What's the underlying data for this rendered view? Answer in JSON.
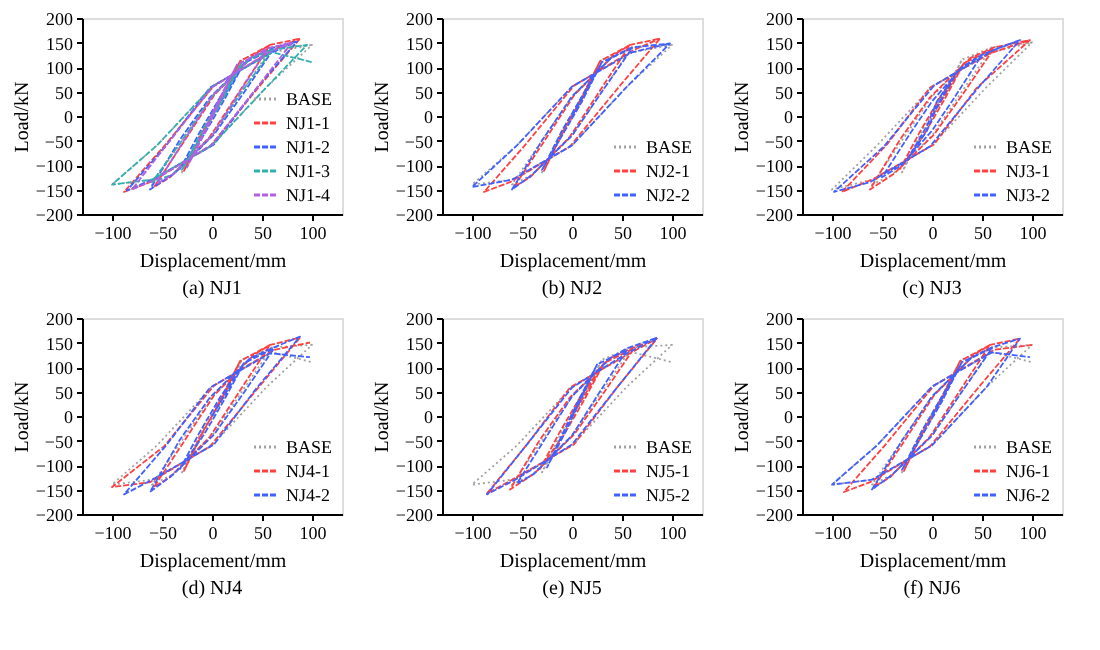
{
  "chart_data": [
    {
      "type": "line",
      "title": "(a) NJ1",
      "xlabel": "Displacement/mm",
      "ylabel": "Load/kN",
      "xlim": [
        -130,
        130
      ],
      "xticks": [
        -100,
        -50,
        0,
        50,
        100
      ],
      "ylim": [
        -200,
        200
      ],
      "yticks": [
        -200,
        -150,
        -100,
        -50,
        0,
        50,
        100,
        150,
        200
      ],
      "legend": "bottom right",
      "series": [
        {
          "name": "BASE",
          "color": "#a0a0a0",
          "line_style": "dotted",
          "x": [
            0,
            30,
            10,
            -10,
            -30,
            -10,
            10,
            30,
            60,
            30,
            0,
            -40,
            -60,
            -30,
            0,
            40,
            60,
            100,
            55,
            0,
            -60,
            -100,
            -55,
            0,
            60,
            100
          ],
          "values": [
            0,
            115,
            30,
            -40,
            -115,
            -30,
            40,
            115,
            140,
            50,
            -40,
            -120,
            -140,
            -50,
            40,
            120,
            140,
            145,
            60,
            -60,
            -130,
            -140,
            -60,
            60,
            130,
            145
          ]
        },
        {
          "name": "NJ1-1",
          "color": "#ff4040",
          "line_style": "dashed",
          "x": [
            0,
            28,
            8,
            -12,
            -28,
            -8,
            12,
            28,
            58,
            28,
            -2,
            -42,
            -58,
            -28,
            2,
            42,
            58,
            88,
            48,
            -2,
            -62,
            -88,
            -48,
            2,
            62,
            88
          ],
          "values": [
            0,
            112,
            28,
            -42,
            -112,
            -28,
            42,
            112,
            145,
            52,
            -42,
            -125,
            -145,
            -52,
            42,
            125,
            145,
            158,
            62,
            -62,
            -135,
            -155,
            -62,
            62,
            135,
            158
          ]
        },
        {
          "name": "NJ1-2",
          "color": "#4060ff",
          "line_style": "dashed",
          "x": [
            0,
            32,
            12,
            -8,
            -32,
            -12,
            8,
            32,
            62,
            32,
            2,
            -38,
            -62,
            -32,
            -2,
            38,
            62,
            85,
            45,
            2,
            -58,
            -85,
            -45,
            -2,
            58,
            85
          ],
          "values": [
            0,
            108,
            32,
            -38,
            -108,
            -32,
            38,
            108,
            138,
            48,
            -38,
            -118,
            -150,
            -48,
            38,
            118,
            140,
            152,
            58,
            -58,
            -128,
            -152,
            -58,
            58,
            128,
            152
          ]
        },
        {
          "name": "NJ1-3",
          "color": "#30b0b0",
          "line_style": "dashed",
          "x": [
            0,
            30,
            10,
            -10,
            -30,
            -10,
            10,
            30,
            60,
            30,
            0,
            -40,
            -60,
            -30,
            0,
            40,
            60,
            95,
            55,
            0,
            -60,
            -100,
            -55,
            0,
            60,
            100
          ],
          "values": [
            0,
            110,
            30,
            -40,
            -110,
            -30,
            40,
            110,
            135,
            50,
            -40,
            -120,
            -135,
            -50,
            40,
            120,
            135,
            145,
            60,
            -60,
            -130,
            -140,
            -60,
            60,
            130,
            110
          ]
        },
        {
          "name": "NJ1-4",
          "color": "#b060e0",
          "line_style": "dashed",
          "x": [
            0,
            25,
            8,
            -8,
            -25,
            -8,
            8,
            25,
            55,
            28,
            0,
            -38,
            -55,
            -28,
            0,
            38,
            55,
            80,
            45,
            0,
            -55,
            -80,
            -45,
            0,
            55,
            80
          ],
          "values": [
            0,
            105,
            30,
            -38,
            -105,
            -30,
            38,
            105,
            135,
            50,
            -40,
            -118,
            -138,
            -50,
            40,
            118,
            138,
            150,
            58,
            -58,
            -128,
            -150,
            -58,
            58,
            128,
            150
          ]
        }
      ]
    },
    {
      "type": "line",
      "title": "(b) NJ2",
      "xlabel": "Displacement/mm",
      "ylabel": "Load/kN",
      "xlim": [
        -130,
        130
      ],
      "xticks": [
        -100,
        -50,
        0,
        50,
        100
      ],
      "ylim": [
        -200,
        200
      ],
      "yticks": [
        -200,
        -150,
        -100,
        -50,
        0,
        50,
        100,
        150,
        200
      ],
      "legend": "bottom right",
      "series": [
        {
          "name": "BASE",
          "color": "#a0a0a0",
          "line_style": "dotted",
          "x": [
            0,
            30,
            10,
            -10,
            -30,
            -10,
            10,
            30,
            60,
            30,
            0,
            -40,
            -60,
            -30,
            0,
            40,
            60,
            100,
            55,
            0,
            -60,
            -100,
            -55,
            0,
            60,
            100
          ],
          "values": [
            0,
            115,
            30,
            -40,
            -115,
            -30,
            40,
            115,
            140,
            50,
            -40,
            -120,
            -140,
            -50,
            40,
            120,
            140,
            145,
            60,
            -60,
            -130,
            -140,
            -60,
            60,
            130,
            145
          ]
        },
        {
          "name": "NJ2-1",
          "color": "#ff4040",
          "line_style": "dashed",
          "x": [
            0,
            28,
            8,
            -12,
            -28,
            -8,
            12,
            28,
            58,
            28,
            -2,
            -42,
            -58,
            -28,
            2,
            42,
            58,
            88,
            48,
            -2,
            -62,
            -88,
            -48,
            2,
            62,
            88
          ],
          "values": [
            0,
            112,
            28,
            -42,
            -112,
            -28,
            42,
            112,
            145,
            52,
            -42,
            -125,
            -145,
            -52,
            42,
            125,
            145,
            158,
            62,
            -62,
            -135,
            -155,
            -62,
            62,
            135,
            158
          ]
        },
        {
          "name": "NJ2-2",
          "color": "#4060ff",
          "line_style": "dashed",
          "x": [
            0,
            30,
            10,
            -10,
            -30,
            -10,
            10,
            30,
            60,
            30,
            0,
            -40,
            -60,
            -30,
            0,
            40,
            60,
            98,
            55,
            0,
            -60,
            -100,
            -55,
            0,
            60,
            98
          ],
          "values": [
            0,
            110,
            30,
            -40,
            -110,
            -30,
            40,
            110,
            138,
            50,
            -40,
            -120,
            -150,
            -50,
            40,
            120,
            140,
            148,
            60,
            -60,
            -130,
            -145,
            -60,
            60,
            130,
            148
          ]
        }
      ]
    },
    {
      "type": "line",
      "title": "(c) NJ3",
      "xlabel": "Displacement/mm",
      "ylabel": "Load/kN",
      "xlim": [
        -130,
        130
      ],
      "xticks": [
        -100,
        -50,
        0,
        50,
        100
      ],
      "ylim": [
        -200,
        200
      ],
      "yticks": [
        -200,
        -150,
        -100,
        -50,
        0,
        50,
        100,
        150,
        200
      ],
      "legend": "bottom right",
      "series": [
        {
          "name": "BASE",
          "color": "#a0a0a0",
          "line_style": "dotted",
          "x": [
            0,
            30,
            10,
            -10,
            -30,
            -10,
            10,
            30,
            60,
            30,
            0,
            -40,
            -60,
            -30,
            0,
            40,
            60,
            100,
            55,
            0,
            -60,
            -100,
            -55,
            0,
            60,
            100
          ],
          "values": [
            0,
            115,
            30,
            -40,
            -115,
            -30,
            40,
            115,
            140,
            50,
            -40,
            -120,
            -140,
            -50,
            40,
            120,
            140,
            150,
            60,
            -60,
            -130,
            -150,
            -60,
            60,
            130,
            150
          ]
        },
        {
          "name": "NJ3-1",
          "color": "#ff4040",
          "line_style": "dashed",
          "x": [
            0,
            32,
            12,
            -8,
            -32,
            -12,
            8,
            32,
            62,
            32,
            2,
            -38,
            -62,
            -32,
            -2,
            38,
            62,
            98,
            45,
            2,
            -58,
            -90,
            -45,
            -2,
            58,
            98
          ],
          "values": [
            0,
            108,
            32,
            -38,
            -108,
            -32,
            38,
            108,
            138,
            48,
            -38,
            -118,
            -150,
            -48,
            38,
            118,
            140,
            155,
            58,
            -58,
            -128,
            -155,
            -58,
            58,
            128,
            155
          ]
        },
        {
          "name": "NJ3-2",
          "color": "#4060ff",
          "line_style": "dashed",
          "x": [
            0,
            25,
            5,
            -5,
            -25,
            -5,
            5,
            25,
            50,
            20,
            0,
            -30,
            -50,
            -20,
            0,
            30,
            50,
            88,
            48,
            -2,
            -62,
            -98,
            -48,
            2,
            62,
            88
          ],
          "values": [
            0,
            90,
            20,
            -30,
            -90,
            -20,
            30,
            90,
            125,
            30,
            -30,
            -100,
            -125,
            -30,
            30,
            100,
            125,
            155,
            62,
            -62,
            -135,
            -155,
            -62,
            62,
            135,
            155
          ]
        }
      ]
    },
    {
      "type": "line",
      "title": "(d) NJ4",
      "xlabel": "Displacement/mm",
      "ylabel": "Load/kN",
      "xlim": [
        -130,
        130
      ],
      "xticks": [
        -100,
        -50,
        0,
        50,
        100
      ],
      "ylim": [
        -200,
        200
      ],
      "yticks": [
        -200,
        -150,
        -100,
        -50,
        0,
        50,
        100,
        150,
        200
      ],
      "legend": "bottom right",
      "series": [
        {
          "name": "BASE",
          "color": "#a0a0a0",
          "line_style": "dotted",
          "x": [
            0,
            30,
            10,
            -10,
            -30,
            -10,
            10,
            30,
            60,
            30,
            0,
            -40,
            -60,
            -30,
            0,
            40,
            60,
            100,
            55,
            0,
            -60,
            -100,
            -55,
            0,
            60,
            100
          ],
          "values": [
            0,
            115,
            30,
            -40,
            -115,
            -30,
            40,
            115,
            140,
            50,
            -40,
            -120,
            -140,
            -50,
            40,
            120,
            140,
            145,
            60,
            -60,
            -130,
            -140,
            -60,
            60,
            130,
            110
          ]
        },
        {
          "name": "NJ4-1",
          "color": "#ff4040",
          "line_style": "dashed",
          "x": [
            0,
            28,
            8,
            -12,
            -28,
            -8,
            12,
            28,
            58,
            28,
            -2,
            -42,
            -58,
            -28,
            2,
            42,
            58,
            88,
            48,
            -2,
            -62,
            -100,
            -48,
            2,
            62,
            98
          ],
          "values": [
            0,
            112,
            28,
            -42,
            -112,
            -28,
            42,
            112,
            145,
            52,
            -42,
            -125,
            -145,
            -52,
            42,
            125,
            145,
            160,
            62,
            -62,
            -135,
            -145,
            -62,
            62,
            135,
            150
          ]
        },
        {
          "name": "NJ4-2",
          "color": "#4060ff",
          "line_style": "dashed",
          "x": [
            0,
            32,
            12,
            -8,
            -32,
            -12,
            8,
            32,
            62,
            32,
            2,
            -38,
            -62,
            -32,
            -2,
            38,
            62,
            88,
            45,
            2,
            -58,
            -88,
            -45,
            -2,
            58,
            98
          ],
          "values": [
            0,
            108,
            32,
            -38,
            -108,
            -32,
            38,
            108,
            138,
            48,
            -38,
            -118,
            -155,
            -48,
            38,
            118,
            140,
            162,
            58,
            -58,
            -128,
            -160,
            -58,
            58,
            128,
            120
          ]
        }
      ]
    },
    {
      "type": "line",
      "title": "(e) NJ5",
      "xlabel": "Displacement/mm",
      "ylabel": "Load/kN",
      "xlim": [
        -130,
        130
      ],
      "xticks": [
        -100,
        -50,
        0,
        50,
        100
      ],
      "ylim": [
        -200,
        200
      ],
      "yticks": [
        -200,
        -150,
        -100,
        -50,
        0,
        50,
        100,
        150,
        200
      ],
      "legend": "bottom right",
      "series": [
        {
          "name": "BASE",
          "color": "#a0a0a0",
          "line_style": "dotted",
          "x": [
            0,
            30,
            10,
            -10,
            -30,
            -10,
            10,
            30,
            60,
            30,
            0,
            -40,
            -60,
            -30,
            0,
            40,
            60,
            100,
            55,
            0,
            -60,
            -100,
            -55,
            0,
            60,
            100
          ],
          "values": [
            0,
            115,
            30,
            -40,
            -115,
            -30,
            40,
            115,
            140,
            50,
            -40,
            -120,
            -140,
            -50,
            40,
            120,
            140,
            145,
            60,
            -60,
            -130,
            -140,
            -60,
            60,
            130,
            110
          ]
        },
        {
          "name": "NJ5-1",
          "color": "#ff4040",
          "line_style": "dashed",
          "x": [
            0,
            32,
            12,
            -8,
            -32,
            -12,
            8,
            32,
            62,
            32,
            2,
            -38,
            -62,
            -32,
            -2,
            38,
            62,
            85,
            45,
            2,
            -58,
            -85,
            -45,
            -2,
            58,
            85
          ],
          "values": [
            0,
            108,
            32,
            -38,
            -108,
            -32,
            38,
            108,
            138,
            48,
            -38,
            -118,
            -150,
            -48,
            38,
            118,
            140,
            158,
            58,
            -58,
            -128,
            -158,
            -58,
            58,
            128,
            158
          ]
        },
        {
          "name": "NJ5-2",
          "color": "#4060ff",
          "line_style": "dashed",
          "x": [
            0,
            25,
            8,
            -8,
            -25,
            -8,
            8,
            25,
            55,
            28,
            0,
            -38,
            -55,
            -28,
            0,
            38,
            55,
            85,
            45,
            0,
            -55,
            -85,
            -45,
            0,
            55,
            85
          ],
          "values": [
            0,
            105,
            30,
            -38,
            -105,
            -30,
            38,
            105,
            135,
            50,
            -40,
            -118,
            -138,
            -50,
            40,
            118,
            138,
            160,
            58,
            -58,
            -128,
            -160,
            -58,
            58,
            128,
            160
          ]
        }
      ]
    },
    {
      "type": "line",
      "title": "(f) NJ6",
      "xlabel": "Displacement/mm",
      "ylabel": "Load/kN",
      "xlim": [
        -130,
        130
      ],
      "xticks": [
        -100,
        -50,
        0,
        50,
        100
      ],
      "ylim": [
        -200,
        200
      ],
      "yticks": [
        -200,
        -150,
        -100,
        -50,
        0,
        50,
        100,
        150,
        200
      ],
      "legend": "bottom right",
      "series": [
        {
          "name": "BASE",
          "color": "#a0a0a0",
          "line_style": "dotted",
          "x": [
            0,
            30,
            10,
            -10,
            -30,
            -10,
            10,
            30,
            60,
            30,
            0,
            -40,
            -60,
            -30,
            0,
            40,
            60,
            100,
            55,
            0,
            -60,
            -100,
            -55,
            0,
            60,
            100
          ],
          "values": [
            0,
            115,
            30,
            -40,
            -115,
            -30,
            40,
            115,
            140,
            50,
            -40,
            -120,
            -140,
            -50,
            40,
            120,
            140,
            145,
            60,
            -60,
            -130,
            -140,
            -60,
            60,
            130,
            110
          ]
        },
        {
          "name": "NJ6-1",
          "color": "#ff4040",
          "line_style": "dashed",
          "x": [
            0,
            28,
            8,
            -12,
            -28,
            -8,
            12,
            28,
            58,
            28,
            -2,
            -42,
            -58,
            -28,
            2,
            42,
            58,
            88,
            48,
            -2,
            -62,
            -88,
            -48,
            2,
            62,
            100
          ],
          "values": [
            0,
            112,
            28,
            -42,
            -112,
            -28,
            42,
            112,
            145,
            52,
            -42,
            -125,
            -145,
            -52,
            42,
            125,
            145,
            158,
            62,
            -62,
            -135,
            -155,
            -62,
            62,
            135,
            145
          ]
        },
        {
          "name": "NJ6-2",
          "color": "#4060ff",
          "line_style": "dashed",
          "x": [
            0,
            30,
            10,
            -10,
            -30,
            -10,
            10,
            30,
            60,
            30,
            0,
            -40,
            -60,
            -30,
            0,
            40,
            60,
            88,
            55,
            0,
            -60,
            -100,
            -55,
            0,
            60,
            98
          ],
          "values": [
            0,
            110,
            30,
            -40,
            -110,
            -30,
            40,
            110,
            138,
            50,
            -40,
            -120,
            -150,
            -50,
            40,
            120,
            140,
            158,
            60,
            -60,
            -130,
            -140,
            -60,
            60,
            130,
            120
          ]
        }
      ]
    }
  ]
}
